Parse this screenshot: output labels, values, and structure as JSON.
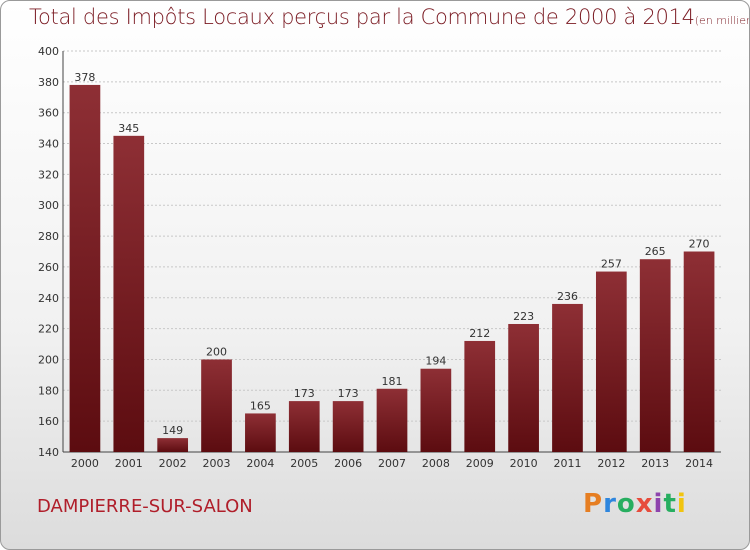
{
  "title": "Total des Impôts Locaux perçus par la Commune de 2000 à 2014",
  "title_unit": "(en milliers d'€)",
  "commune": "DAMPIERRE-SUR-SALON",
  "logo": {
    "letters": [
      "P",
      "r",
      "o",
      "x",
      "i",
      "t",
      "i"
    ],
    "colors": [
      "#e67e22",
      "#2e86de",
      "#27ae60",
      "#e74c3c",
      "#8e44ad",
      "#27ae60",
      "#f1c40f"
    ]
  },
  "colors": {
    "bar_top": "#8e2f35",
    "bar_bottom": "#5c0c10",
    "title": "#7a1a22",
    "commune": "#b01e2a",
    "grid": "#c8c8c8"
  },
  "chart_data": {
    "type": "bar",
    "categories": [
      "2000",
      "2001",
      "2002",
      "2003",
      "2004",
      "2005",
      "2006",
      "2007",
      "2008",
      "2009",
      "2010",
      "2011",
      "2012",
      "2013",
      "2014"
    ],
    "values": [
      378,
      345,
      149,
      200,
      165,
      173,
      173,
      181,
      194,
      212,
      223,
      236,
      257,
      265,
      270
    ],
    "ylim": [
      140,
      400
    ],
    "yticks": [
      140,
      160,
      180,
      200,
      220,
      240,
      260,
      280,
      300,
      320,
      340,
      360,
      380,
      400
    ],
    "grid": true,
    "data_labels": true
  }
}
